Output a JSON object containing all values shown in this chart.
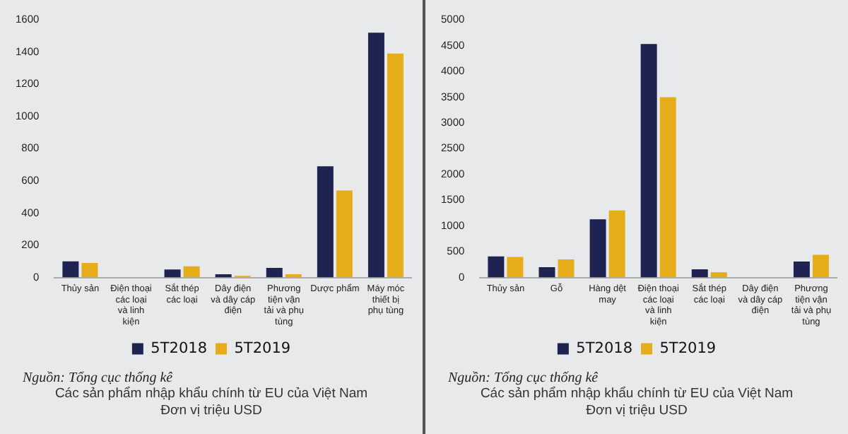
{
  "chart_data": [
    {
      "type": "bar",
      "categories": [
        "Thủy sản",
        "Điện thoại các loại và linh kiện",
        "Sắt thép các loại",
        "Dây điện và dây cáp điện",
        "Phương tiện vận tải và phụ tùng",
        "Dược phẩm",
        "Máy móc thiết bị phụ tùng"
      ],
      "series": [
        {
          "name": "5T2018",
          "color": "#1f2352",
          "values": [
            100,
            0,
            50,
            20,
            60,
            690,
            1520
          ]
        },
        {
          "name": "5T2019",
          "color": "#e6ad1a",
          "values": [
            90,
            0,
            70,
            10,
            20,
            540,
            1390
          ]
        }
      ],
      "ylim": [
        0,
        1600
      ],
      "yticks": [
        0,
        200,
        400,
        600,
        800,
        1000,
        1200,
        1400,
        1600
      ],
      "grid": false,
      "legend": "bottom",
      "annotations": [
        "Nguồn: Tổng cục thống kê",
        "Các sản phẩm  nhập khẩu chính từ EU của Việt Nam",
        "Đơn vị triệu USD"
      ]
    },
    {
      "type": "bar",
      "categories": [
        "Thủy sản",
        "Gỗ",
        "Hàng dệt may",
        "Điện thoại các loại và linh kiện",
        "Sắt thép các loại",
        "Dây điện và dây cáp điện",
        "Phương tiện vận tải và phụ tùng"
      ],
      "series": [
        {
          "name": "5T2018",
          "color": "#1f2352",
          "values": [
            410,
            200,
            1130,
            4530,
            160,
            0,
            310
          ]
        },
        {
          "name": "5T2019",
          "color": "#e6ad1a",
          "values": [
            400,
            350,
            1300,
            3500,
            100,
            0,
            440
          ]
        }
      ],
      "ylim": [
        0,
        5000
      ],
      "yticks": [
        0,
        500,
        1000,
        1500,
        2000,
        2500,
        3000,
        3500,
        4000,
        4500,
        5000
      ],
      "grid": false,
      "legend": "bottom",
      "annotations": [
        "Nguồn: Tổng cục thống kê",
        "Các sản phẩm  nhập khẩu chính từ EU của Việt Nam",
        "Đơn vị triệu USD"
      ]
    }
  ]
}
